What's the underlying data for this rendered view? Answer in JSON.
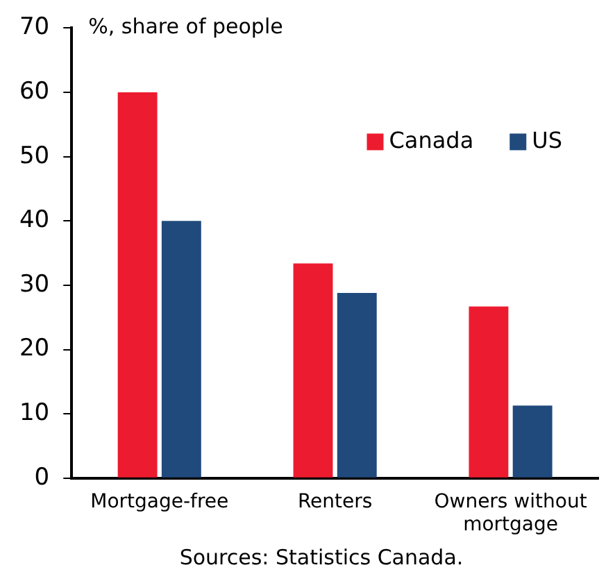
{
  "chart_data": {
    "type": "bar",
    "ylabel": "%, share of people",
    "categories": [
      "Mortgage-free",
      "Renters",
      "Owners without mortgage"
    ],
    "series": [
      {
        "name": "Canada",
        "color": "#ed1b2f",
        "values": [
          60,
          33.4,
          26.7
        ]
      },
      {
        "name": "US",
        "color": "#204a7c",
        "values": [
          40,
          28.8,
          11.3
        ]
      }
    ],
    "ylim": [
      0,
      70
    ],
    "yticks": [
      0,
      10,
      20,
      30,
      40,
      50,
      60,
      70
    ],
    "grid": false,
    "legend": "top right",
    "annotations": [
      "Sources: Statistics Canada."
    ]
  }
}
